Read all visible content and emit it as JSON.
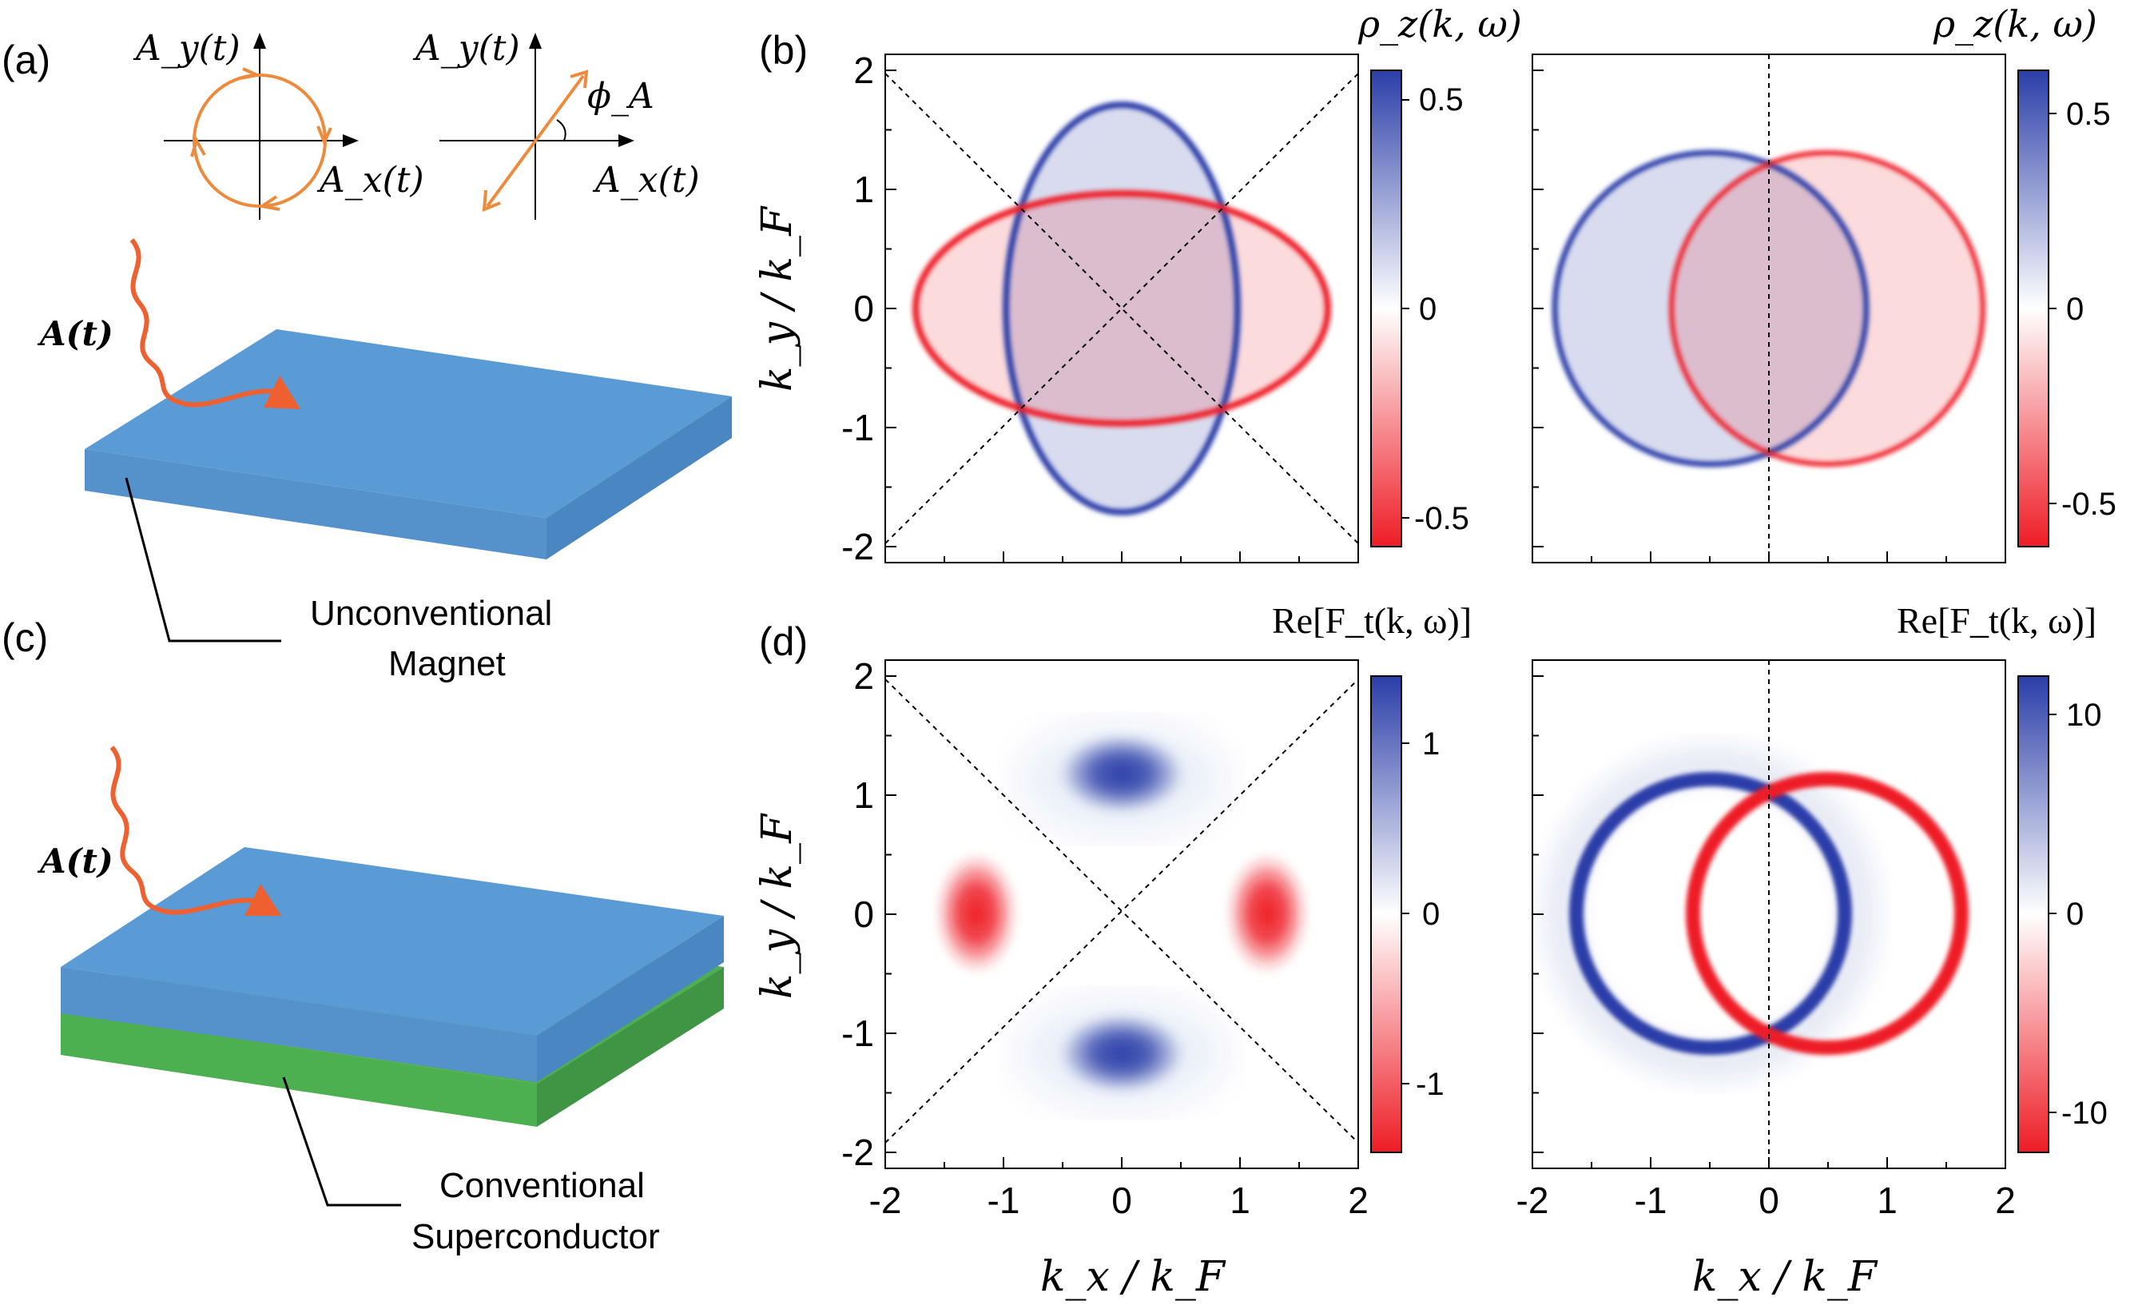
{
  "panel_labels": {
    "a": "(a)",
    "b": "(b)",
    "c": "(c)",
    "d": "(d)"
  },
  "panel_a": {
    "circular_ay": "A_y(t)",
    "circular_ax": "A_x(t)",
    "linear_ay": "A_y(t)",
    "linear_ax": "A_x(t)",
    "linear_angle": "ϕ_A",
    "field_label": "A(t)",
    "device_label_line1": "Unconventional",
    "device_label_line2": "Magnet"
  },
  "panel_c": {
    "field_label": "A(t)",
    "device_label_line1": "Conventional",
    "device_label_line2": "Superconductor"
  },
  "colors": {
    "top_slab": "#5b9bd5",
    "top_slab_side": "#4a87c2",
    "top_slab_front": "#5592cc",
    "bottom_slab": "#4caf50",
    "bottom_slab_side": "#3f9544",
    "arrow": "#ef6030",
    "circle": "#ee8a3c",
    "blue": "#2b3ea8",
    "red": "#ee1c25"
  },
  "axes": {
    "ylabel": "k_y / k_F",
    "xlabel": "k_x / k_F",
    "ticks": [
      "-2",
      "-1",
      "0",
      "1",
      "2"
    ],
    "x_ticks": [
      -2,
      -1,
      0,
      1,
      2
    ],
    "y_ticks": [
      -2,
      -1,
      0,
      1,
      2
    ]
  },
  "colorbars": {
    "b_title": "ρ_z(k, ω)",
    "d_title": "Re[F_t(k, ω)]",
    "b_left_ticks": [
      "0.5",
      "0",
      "-0.5"
    ],
    "b_right_ticks": [
      "0.5",
      "0",
      "-0.5"
    ],
    "d_left_ticks": [
      "1",
      "0",
      "-1"
    ],
    "d_right_ticks": [
      "10",
      "0",
      "-10"
    ]
  },
  "chart_data": [
    {
      "type": "heatmap",
      "panel": "b-left",
      "title": "ρ_z(k, ω)",
      "xlabel": "",
      "ylabel": "k_y / k_F",
      "xlim": [
        -2,
        2
      ],
      "ylim": [
        -2,
        2
      ],
      "description_shapes": {
        "blue_ellipse": {
          "cx": 0,
          "cy": 0,
          "rx": 0.85,
          "ry": 1.7
        },
        "red_ellipse": {
          "cx": 0,
          "cy": 0,
          "rx": 1.8,
          "ry": 0.95
        },
        "diagonals": true
      },
      "colorbar": {
        "min": -0.6,
        "max": 0.6,
        "ticks": [
          0.5,
          0,
          -0.5
        ]
      }
    },
    {
      "type": "heatmap",
      "panel": "b-right",
      "title": "ρ_z(k, ω)",
      "xlabel": "",
      "ylabel": "",
      "xlim": [
        -2,
        2
      ],
      "ylim": [
        -2,
        2
      ],
      "description_shapes": {
        "blue_circle": {
          "cx": -0.5,
          "cy": 0,
          "r": 1.35
        },
        "red_circle": {
          "cx": 0.5,
          "cy": 0,
          "r": 1.35
        },
        "vertical_line_x": 0
      },
      "colorbar": {
        "min": -0.6,
        "max": 0.6,
        "ticks": [
          0.5,
          0,
          -0.5
        ]
      }
    },
    {
      "type": "heatmap",
      "panel": "d-left",
      "title": "Re[F_t(k, ω)]",
      "xlabel": "k_x / k_F",
      "ylabel": "k_y / k_F",
      "xlim": [
        -2,
        2
      ],
      "ylim": [
        -2,
        2
      ],
      "description_shapes": {
        "blue_lobes": [
          {
            "x": 0,
            "y": 1.2
          },
          {
            "x": 0,
            "y": -1.2
          }
        ],
        "red_lobes": [
          {
            "x": -1.2,
            "y": 0
          },
          {
            "x": 1.2,
            "y": 0
          }
        ],
        "diagonals": true
      },
      "colorbar": {
        "min": -1.4,
        "max": 1.4,
        "ticks": [
          1,
          0,
          -1
        ]
      }
    },
    {
      "type": "heatmap",
      "panel": "d-right",
      "title": "Re[F_t(k, ω)]",
      "xlabel": "k_x / k_F",
      "ylabel": "",
      "xlim": [
        -2,
        2
      ],
      "ylim": [
        -2,
        2
      ],
      "description_shapes": {
        "blue_ring": {
          "cx": -0.5,
          "cy": 0,
          "r": 1.1
        },
        "red_ring": {
          "cx": 0.5,
          "cy": 0,
          "r": 1.1
        },
        "vertical_line_x": 0
      },
      "colorbar": {
        "min": -12,
        "max": 12,
        "ticks": [
          10,
          0,
          -10
        ]
      }
    }
  ]
}
